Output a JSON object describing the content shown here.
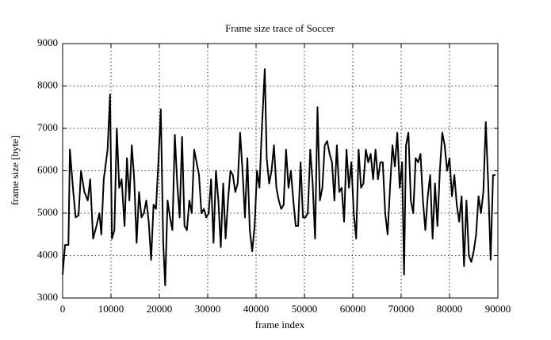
{
  "chart_data": {
    "type": "line",
    "title": "Frame size trace of Soccer",
    "x_label": "frame index",
    "y_label": "frame size [byte]",
    "x": [
      0,
      500,
      1200,
      1500,
      2200,
      2700,
      3300,
      3800,
      4500,
      5200,
      5700,
      6300,
      7000,
      7600,
      8000,
      8500,
      9300,
      9800,
      10200,
      10700,
      11200,
      11700,
      12200,
      12800,
      13300,
      13800,
      14300,
      14800,
      15300,
      15800,
      16300,
      16800,
      17300,
      17800,
      18300,
      18800,
      19300,
      19800,
      20300,
      20800,
      21200,
      21700,
      22200,
      22700,
      23200,
      23700,
      24200,
      24700,
      25200,
      25700,
      26200,
      26700,
      27200,
      27700,
      28200,
      28700,
      29200,
      29700,
      30200,
      30700,
      31200,
      31700,
      32200,
      32700,
      33200,
      33700,
      34200,
      34700,
      35200,
      35700,
      36200,
      36700,
      37200,
      37700,
      38200,
      38700,
      39200,
      39700,
      40200,
      40700,
      41200,
      41800,
      42200,
      42700,
      43200,
      43700,
      44200,
      44700,
      45200,
      45700,
      46200,
      46700,
      47200,
      47700,
      48200,
      48700,
      49200,
      49700,
      50200,
      50700,
      51200,
      51700,
      52200,
      52700,
      53200,
      53700,
      54200,
      54700,
      55200,
      55700,
      56200,
      56700,
      57200,
      57700,
      58200,
      58700,
      59200,
      59700,
      60200,
      60700,
      61200,
      61700,
      62200,
      62700,
      63200,
      63700,
      64200,
      64700,
      65200,
      65700,
      66200,
      66700,
      67200,
      67700,
      68200,
      68700,
      69200,
      69700,
      70200,
      70600,
      71000,
      71500,
      72000,
      72500,
      73000,
      73500,
      74000,
      74500,
      75000,
      75500,
      76000,
      76500,
      77000,
      77500,
      78000,
      78500,
      79000,
      79500,
      80000,
      80500,
      81000,
      81500,
      82000,
      82500,
      83000,
      83500,
      84000,
      84500,
      85000,
      85500,
      86000,
      86500,
      87000,
      87500,
      88000,
      88500,
      89000,
      89500
    ],
    "series": [
      {
        "name": "Soccer",
        "color": "#000000",
        "values": [
          3550,
          4250,
          4250,
          6500,
          5500,
          4900,
          4950,
          6000,
          5500,
          5300,
          5800,
          4400,
          4700,
          5000,
          4500,
          5800,
          6500,
          7800,
          4400,
          4600,
          7000,
          5600,
          5800,
          4700,
          6300,
          5300,
          6600,
          5800,
          4300,
          5500,
          4900,
          5000,
          5300,
          4800,
          3900,
          5200,
          5100,
          6200,
          7450,
          4300,
          3300,
          5300,
          4900,
          4600,
          6850,
          5700,
          4900,
          6800,
          4700,
          4600,
          5300,
          5000,
          6500,
          6200,
          5900,
          5000,
          5100,
          4900,
          5000,
          5800,
          4300,
          6000,
          5300,
          4200,
          5700,
          4400,
          5300,
          6000,
          5900,
          5500,
          5700,
          6900,
          6000,
          4900,
          6300,
          4600,
          4100,
          4700,
          6000,
          5600,
          7000,
          8400,
          6300,
          5700,
          6000,
          6600,
          5600,
          5300,
          5100,
          5200,
          6500,
          5600,
          6000,
          5300,
          4700,
          4700,
          6200,
          4900,
          4900,
          5000,
          6500,
          5700,
          4400,
          7500,
          5300,
          5600,
          6600,
          6700,
          6400,
          6200,
          5300,
          6600,
          5500,
          5600,
          4800,
          6500,
          5600,
          6200,
          5000,
          4400,
          6500,
          5600,
          5700,
          6500,
          6200,
          6400,
          5800,
          6500,
          5800,
          6200,
          6200,
          5000,
          4500,
          5600,
          6600,
          6100,
          6900,
          5600,
          6200,
          3550,
          6600,
          6900,
          5300,
          5000,
          6300,
          6200,
          6400,
          5300,
          4600,
          5400,
          5900,
          4400,
          5700,
          4700,
          6000,
          6900,
          6600,
          6000,
          6300,
          5400,
          5900,
          5200,
          4800,
          5400,
          3750,
          5300,
          4000,
          3850,
          4100,
          4500,
          5400,
          5000,
          5500,
          7150,
          5700,
          3900,
          5900,
          5900
        ]
      }
    ],
    "xlim": [
      0,
      90000
    ],
    "ylim": [
      3000,
      9000
    ],
    "xticks": [
      0,
      10000,
      20000,
      30000,
      40000,
      50000,
      60000,
      70000,
      80000,
      90000
    ],
    "yticks": [
      3000,
      4000,
      5000,
      6000,
      7000,
      8000,
      9000
    ],
    "grid": true
  }
}
